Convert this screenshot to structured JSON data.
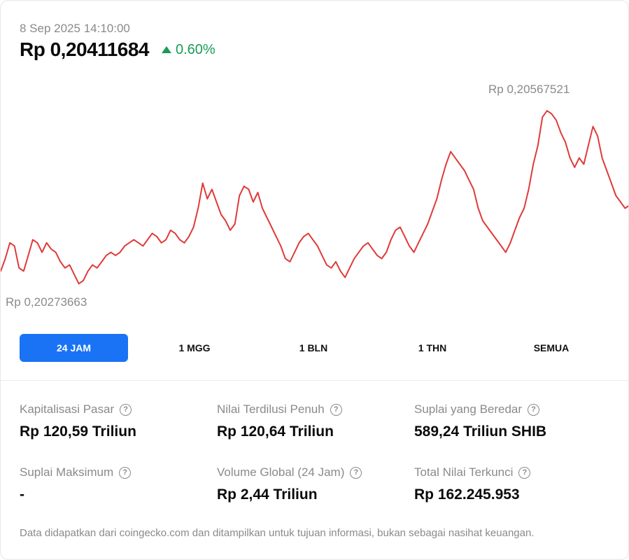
{
  "header": {
    "timestamp": "8 Sep 2025 14:10:00",
    "price": "Rp 0,20411684",
    "change": "0.60%",
    "change_color": "#1a9c55"
  },
  "chart_data": {
    "type": "line",
    "series_color": "#e03a3a",
    "max_label": "Rp 0,20567521",
    "min_label": "Rp 0,20273663",
    "ylim": [
      0.20273663,
      0.20567521
    ],
    "values": [
      0.203,
      0.2032,
      0.20345,
      0.2034,
      0.20305,
      0.203,
      0.20325,
      0.2035,
      0.20345,
      0.2033,
      0.20345,
      0.20335,
      0.2033,
      0.20315,
      0.20305,
      0.2031,
      0.20295,
      0.2028,
      0.20285,
      0.203,
      0.2031,
      0.20305,
      0.20315,
      0.20325,
      0.2033,
      0.20325,
      0.2033,
      0.2034,
      0.20345,
      0.2035,
      0.20345,
      0.2034,
      0.2035,
      0.2036,
      0.20355,
      0.20345,
      0.2035,
      0.20365,
      0.2036,
      0.2035,
      0.20345,
      0.20355,
      0.2037,
      0.204,
      0.2044,
      0.20415,
      0.2043,
      0.2041,
      0.2039,
      0.2038,
      0.20365,
      0.20375,
      0.2042,
      0.20435,
      0.2043,
      0.2041,
      0.20425,
      0.204,
      0.20385,
      0.2037,
      0.20355,
      0.2034,
      0.2032,
      0.20315,
      0.2033,
      0.20345,
      0.20355,
      0.2036,
      0.2035,
      0.2034,
      0.20325,
      0.2031,
      0.20305,
      0.20315,
      0.203,
      0.2029,
      0.20305,
      0.2032,
      0.2033,
      0.2034,
      0.20345,
      0.20335,
      0.20325,
      0.2032,
      0.2033,
      0.2035,
      0.20365,
      0.2037,
      0.20355,
      0.2034,
      0.2033,
      0.20345,
      0.2036,
      0.20375,
      0.20395,
      0.20415,
      0.20445,
      0.2047,
      0.2049,
      0.2048,
      0.2047,
      0.2046,
      0.20445,
      0.2043,
      0.204,
      0.2038,
      0.2037,
      0.2036,
      0.2035,
      0.2034,
      0.2033,
      0.20345,
      0.20365,
      0.20385,
      0.204,
      0.2043,
      0.2047,
      0.205,
      0.20545,
      0.20555,
      0.2055,
      0.2054,
      0.2052,
      0.20505,
      0.2048,
      0.20465,
      0.2048,
      0.2047,
      0.205,
      0.2053,
      0.20515,
      0.2048,
      0.2046,
      0.2044,
      0.2042,
      0.2041,
      0.204,
      0.20405
    ]
  },
  "tabs": [
    {
      "label": "24 JAM",
      "active": true
    },
    {
      "label": "1 MGG",
      "active": false
    },
    {
      "label": "1 BLN",
      "active": false
    },
    {
      "label": "1 THN",
      "active": false
    },
    {
      "label": "SEMUA",
      "active": false
    }
  ],
  "stats": [
    {
      "label": "Kapitalisasi Pasar",
      "value": "Rp 120,59 Triliun"
    },
    {
      "label": "Nilai Terdilusi Penuh",
      "value": "Rp 120,64 Triliun"
    },
    {
      "label": "Suplai yang Beredar",
      "value": "589,24 Triliun SHIB"
    },
    {
      "label": "Suplai Maksimum",
      "value": "-"
    },
    {
      "label": "Volume Global (24 Jam)",
      "value": "Rp 2,44 Triliun"
    },
    {
      "label": "Total Nilai Terkunci",
      "value": "Rp 162.245.953"
    }
  ],
  "help_glyph": "?",
  "footer": "Data didapatkan dari coingecko.com dan ditampilkan untuk tujuan informasi, bukan sebagai nasihat keuangan."
}
